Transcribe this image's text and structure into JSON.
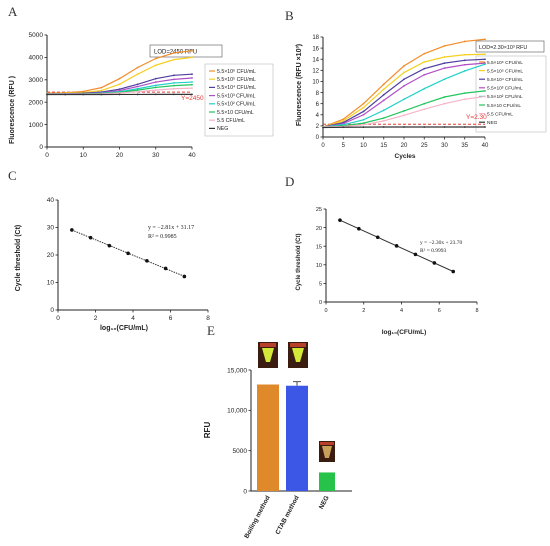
{
  "panels": {
    "A": {
      "letter": "A",
      "ylabel": "Fluorescence (RFU )",
      "lod_box": "LOD=2450 RFU",
      "threshold_label": "Y=2450",
      "yticks": [
        "0",
        "1000",
        "2000",
        "3000",
        "4000",
        "5000"
      ],
      "xticks": [
        "0",
        "10",
        "20",
        "30",
        "40"
      ]
    },
    "B": {
      "letter": "B",
      "ylabel": "Fluorescence (RFU ×10³)",
      "xlabel": "Cycles",
      "lod_box": "LOD=2.30×10³ RFU",
      "threshold_label": "Y=2.30",
      "yticks": [
        "0",
        "2",
        "4",
        "6",
        "8",
        "10",
        "12",
        "14",
        "16",
        "18"
      ],
      "xticks": [
        "0",
        "5",
        "10",
        "15",
        "20",
        "25",
        "30",
        "35",
        "40"
      ]
    },
    "C": {
      "letter": "C",
      "ylabel": "Cycle threshold (Ct)",
      "xlabel": "log₁₀(CFU/mL)",
      "equation": "y = −2.81x + 31.17",
      "r2": "R² = 0.9985",
      "yticks": [
        "0",
        "10",
        "20",
        "30",
        "40"
      ],
      "xticks": [
        "0",
        "2",
        "4",
        "6",
        "8"
      ]
    },
    "D": {
      "letter": "D",
      "ylabel": "Cycle threshold (Ct)",
      "xlabel": "log₁₀(CFU/mL)",
      "equation": "y = −2.30x + 23.70",
      "r2": "R² = 0.9993",
      "yticks": [
        "0",
        "5",
        "10",
        "15",
        "20",
        "25"
      ],
      "xticks": [
        "0",
        "2",
        "4",
        "6",
        "8"
      ]
    },
    "E": {
      "letter": "E",
      "ylabel": "RFU",
      "yticks": [
        "0",
        "5000",
        "10,000",
        "15,000"
      ]
    }
  },
  "chart_data": [
    {
      "id": "A",
      "type": "line",
      "x": [
        0,
        5,
        10,
        15,
        20,
        25,
        30,
        35,
        40
      ],
      "ylim": [
        0,
        5000
      ],
      "xlim": [
        0,
        40
      ],
      "threshold": 2450,
      "series": [
        {
          "name": "5.5×10⁶ CFU/mL",
          "color": "#f28c28",
          "values": [
            2400,
            2420,
            2480,
            2650,
            3050,
            3550,
            3950,
            4200,
            4300
          ]
        },
        {
          "name": "5.5×10⁵ CFU/mL",
          "color": "#f5d020",
          "values": [
            2380,
            2400,
            2430,
            2520,
            2800,
            3250,
            3650,
            3900,
            4000
          ]
        },
        {
          "name": "5.5×10⁴ CFU/mL",
          "color": "#4f3fa0",
          "values": [
            2370,
            2380,
            2400,
            2450,
            2580,
            2800,
            3050,
            3200,
            3250
          ]
        },
        {
          "name": "5.5×10³ CFU/mL",
          "color": "#b050c8",
          "values": [
            2360,
            2370,
            2380,
            2420,
            2520,
            2700,
            2900,
            3020,
            3080
          ]
        },
        {
          "name": "5.5×10² CFU/mL",
          "color": "#1fd1c8",
          "values": [
            2360,
            2365,
            2370,
            2400,
            2470,
            2600,
            2750,
            2860,
            2900
          ]
        },
        {
          "name": "5.5×10 CFU/mL",
          "color": "#22c55e",
          "values": [
            2355,
            2360,
            2365,
            2385,
            2440,
            2540,
            2660,
            2740,
            2780
          ]
        },
        {
          "name": "5.5 CFU/mL",
          "color": "#f7b3c8",
          "values": [
            2350,
            2355,
            2360,
            2375,
            2410,
            2470,
            2540,
            2600,
            2630
          ]
        },
        {
          "name": "NEG",
          "color": "#333333",
          "values": [
            2340,
            2342,
            2344,
            2345,
            2346,
            2347,
            2348,
            2349,
            2350
          ]
        }
      ]
    },
    {
      "id": "B",
      "type": "line",
      "x": [
        0,
        5,
        10,
        15,
        20,
        25,
        30,
        35,
        40
      ],
      "ylim": [
        0,
        18
      ],
      "xlim": [
        0,
        40
      ],
      "threshold": 2.3,
      "series": [
        {
          "name": "5.5×10⁶ CFU/mL",
          "color": "#f28c28",
          "values": [
            1.8,
            3.2,
            6.0,
            9.5,
            12.8,
            15.0,
            16.4,
            17.2,
            17.6
          ]
        },
        {
          "name": "5.5×10⁵ CFU/mL",
          "color": "#f5d020",
          "values": [
            1.8,
            2.9,
            5.3,
            8.6,
            11.6,
            13.5,
            14.4,
            14.8,
            14.9
          ]
        },
        {
          "name": "5.5×10⁴ CFU/mL",
          "color": "#4f3fa0",
          "values": [
            1.8,
            2.6,
            4.6,
            7.6,
            10.4,
            12.3,
            13.3,
            13.8,
            14.0
          ]
        },
        {
          "name": "5.5×10³ CFU/mL",
          "color": "#b050c8",
          "values": [
            1.8,
            2.4,
            4.0,
            6.6,
            9.2,
            11.2,
            12.4,
            13.0,
            13.3
          ]
        },
        {
          "name": "5.5×10² CFU/mL",
          "color": "#1fd1c8",
          "values": [
            1.8,
            2.2,
            3.1,
            4.8,
            6.8,
            8.7,
            10.4,
            11.9,
            13.1
          ]
        },
        {
          "name": "5.5×10 CFU/mL",
          "color": "#22c55e",
          "values": [
            1.8,
            2.0,
            2.5,
            3.4,
            4.7,
            6.0,
            7.2,
            7.9,
            8.3
          ]
        },
        {
          "name": "5.5 CFU/mL",
          "color": "#f7b3c8",
          "values": [
            1.8,
            1.9,
            2.2,
            2.9,
            3.9,
            5.0,
            6.0,
            6.8,
            7.3
          ]
        },
        {
          "name": "NEG",
          "color": "#333333",
          "values": [
            1.7,
            1.75,
            1.78,
            1.8,
            1.8,
            1.8,
            1.8,
            1.8,
            1.8
          ]
        }
      ]
    },
    {
      "id": "C",
      "type": "scatter",
      "xlim": [
        0,
        8
      ],
      "ylim": [
        0,
        40
      ],
      "x": [
        0.74,
        1.74,
        2.74,
        3.74,
        4.74,
        5.74,
        6.74
      ],
      "y": [
        29.1,
        26.3,
        23.4,
        20.6,
        17.9,
        15.1,
        12.2
      ],
      "fit": {
        "slope": -2.81,
        "intercept": 31.17
      }
    },
    {
      "id": "D",
      "type": "scatter",
      "xlim": [
        0,
        8
      ],
      "ylim": [
        0,
        25
      ],
      "x": [
        0.74,
        1.74,
        2.74,
        3.74,
        4.74,
        5.74,
        6.74
      ],
      "y": [
        22.0,
        19.7,
        17.4,
        15.1,
        12.8,
        10.5,
        8.2
      ],
      "fit": {
        "slope": -2.3,
        "intercept": 23.7
      }
    },
    {
      "id": "E",
      "type": "bar",
      "ylim": [
        0,
        15000
      ],
      "categories": [
        "Boiling method",
        "CTAB method",
        "NEG"
      ],
      "values": [
        13200,
        13050,
        2300
      ],
      "errors": [
        0,
        500,
        0
      ],
      "colors": [
        "#e0892a",
        "#3c57e6",
        "#27c24a"
      ]
    }
  ]
}
